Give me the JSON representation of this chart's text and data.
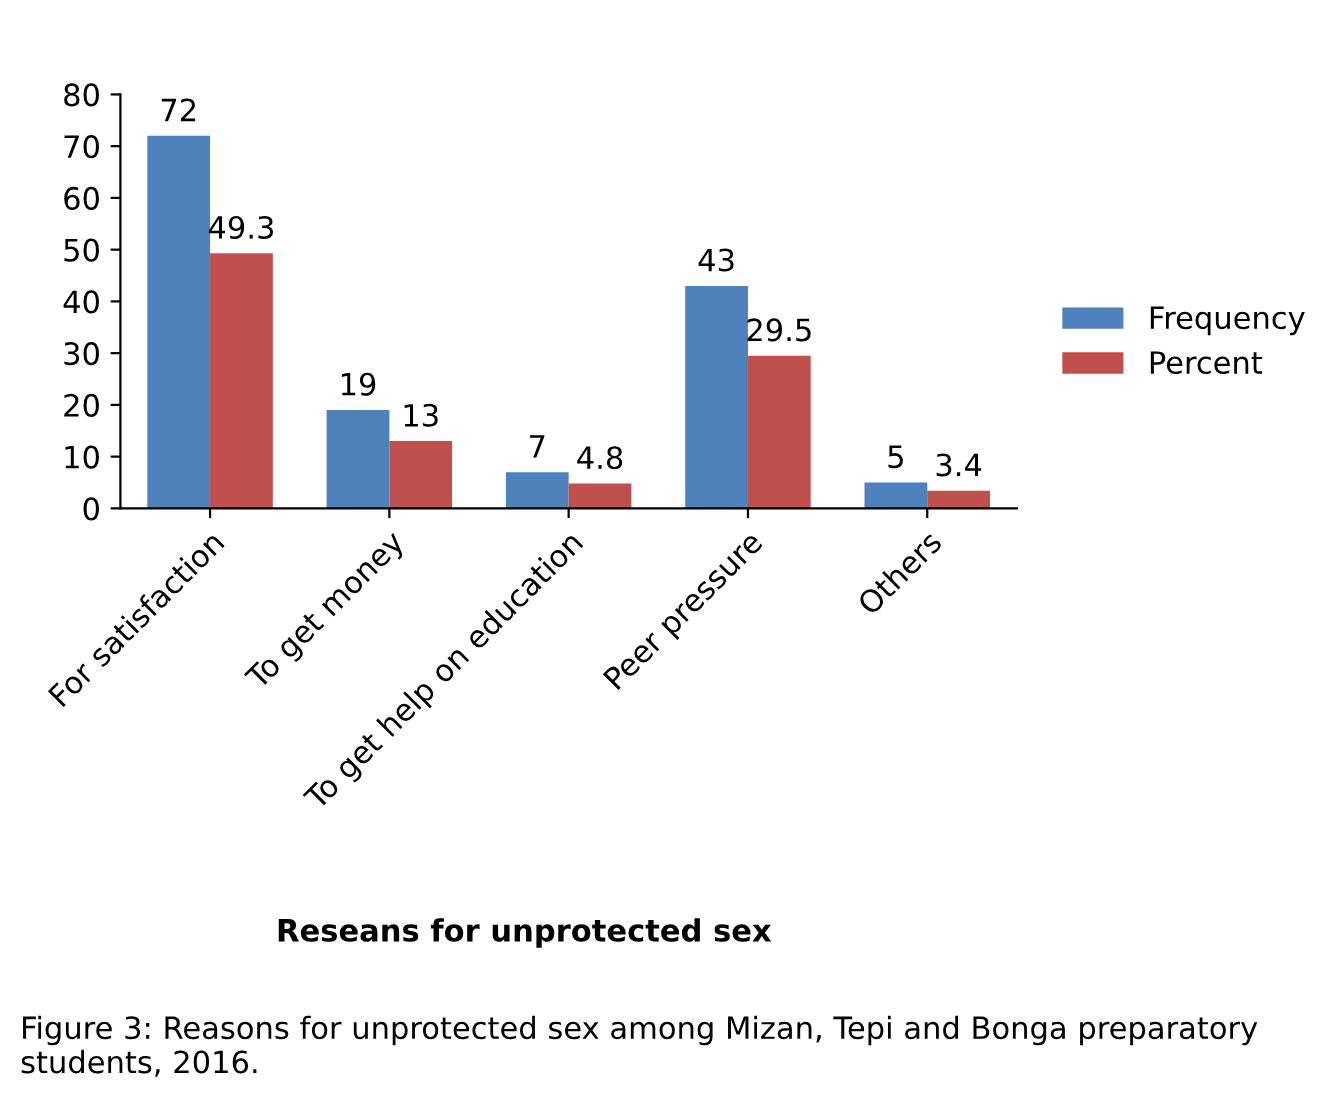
{
  "chart_data": {
    "type": "bar",
    "xlabel": "Reseans for unprotected sex",
    "categories": [
      "For satisfaction",
      "To get money",
      "To get help on education",
      "Peer pressure",
      "Others"
    ],
    "series": [
      {
        "name": "Frequency",
        "color": "#4f81bd",
        "values": [
          72,
          19,
          7,
          43,
          5
        ]
      },
      {
        "name": "Percent",
        "color": "#c0504d",
        "values": [
          49.3,
          13,
          4.8,
          29.5,
          3.4
        ]
      }
    ],
    "ylim": [
      0,
      80
    ],
    "yticks": [
      0,
      10,
      20,
      30,
      40,
      50,
      60,
      70,
      80
    ],
    "data_labels": true,
    "grid": false,
    "legend": "right",
    "annotations": [
      "Figure 3: Reasons for unprotected sex among Mizan, Tepi and Bonga preparatory students, 2016."
    ]
  }
}
